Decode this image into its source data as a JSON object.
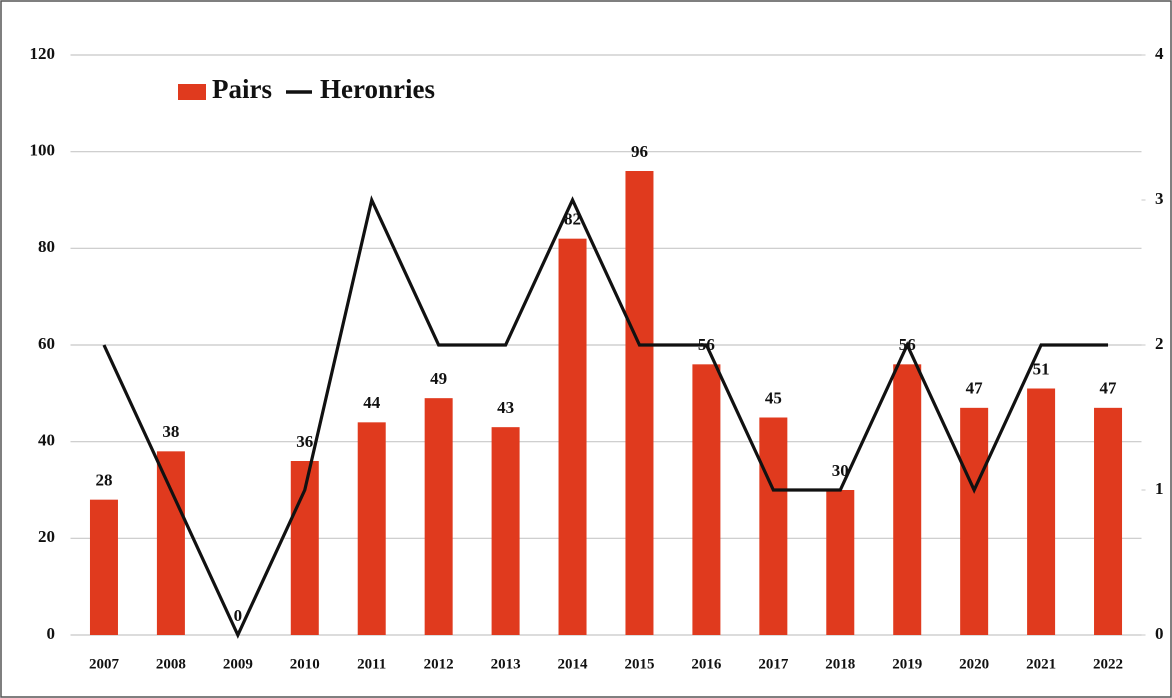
{
  "chart_data": {
    "type": "combo",
    "categories": [
      "2007",
      "2008",
      "2009",
      "2010",
      "2011",
      "2012",
      "2013",
      "2014",
      "2015",
      "2016",
      "2017",
      "2018",
      "2019",
      "2020",
      "2021",
      "2022"
    ],
    "series": [
      {
        "name": "Pairs",
        "type": "bar",
        "color": "#e03a1e",
        "values": [
          28,
          38,
          0,
          36,
          44,
          49,
          43,
          82,
          96,
          56,
          45,
          30,
          56,
          47,
          51,
          47
        ]
      },
      {
        "name": "Heronries",
        "type": "line",
        "axis": "y2",
        "color": "#111111",
        "values": [
          2,
          1,
          0,
          1,
          3,
          2,
          2,
          3,
          2,
          2,
          1,
          1,
          2,
          1,
          2,
          2
        ]
      }
    ],
    "ylim": [
      0,
      120
    ],
    "yticks": [
      0,
      20,
      40,
      60,
      80,
      100,
      120
    ],
    "y2lim": [
      0,
      4
    ],
    "y2ticks": [
      0,
      1,
      2,
      3,
      4
    ],
    "grid": true,
    "legend": "top-left"
  }
}
